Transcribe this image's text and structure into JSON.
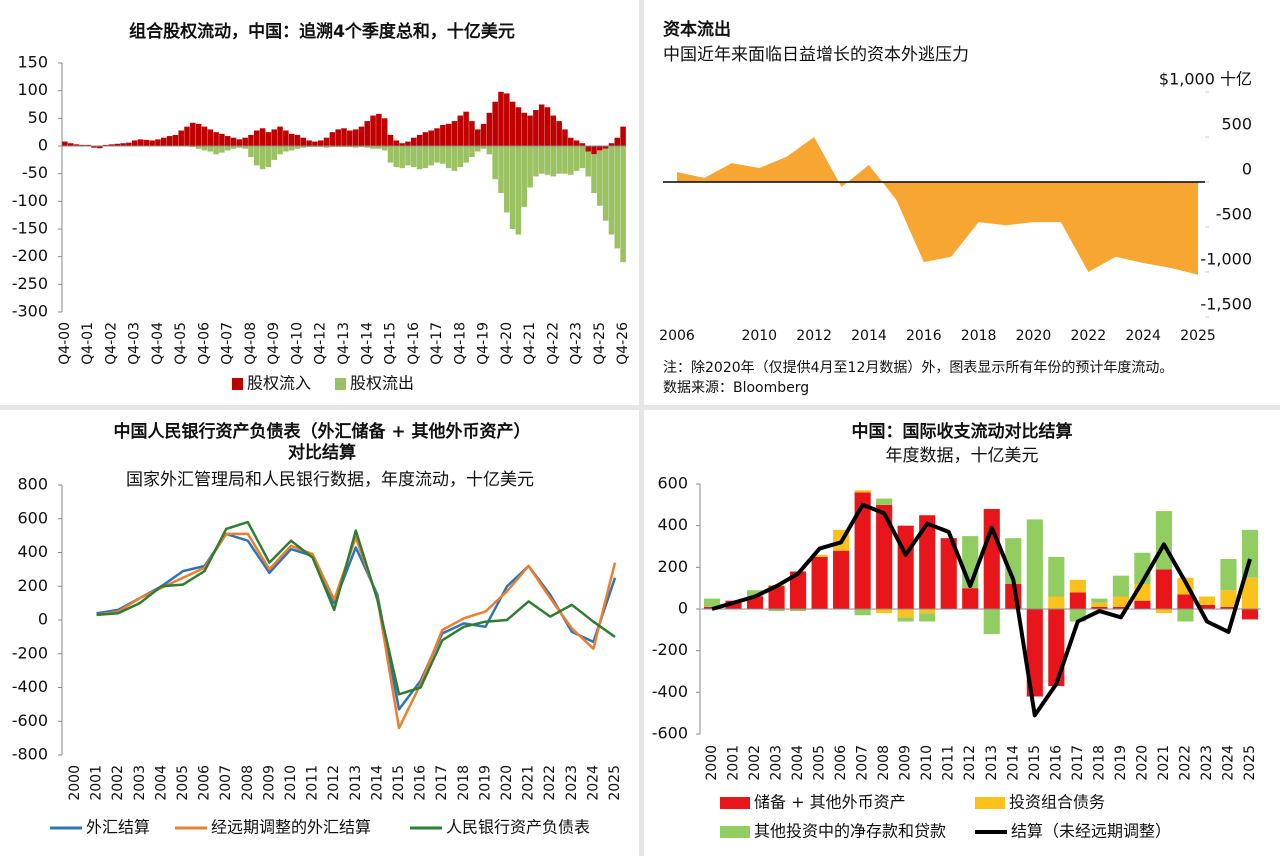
{
  "chart_data": [
    {
      "type": "bar",
      "title": "组合股权流动，中国：追溯4个季度总和，十亿美元",
      "categories": [
        "Q4-00",
        null,
        null,
        null,
        "Q4-01",
        null,
        null,
        null,
        "Q4-02",
        null,
        null,
        null,
        "Q4-03",
        null,
        null,
        null,
        "Q4-04",
        null,
        null,
        null,
        "Q4-05",
        null,
        null,
        null,
        "Q4-06",
        null,
        null,
        null,
        "Q4-07",
        null,
        null,
        null,
        "Q4-08",
        null,
        null,
        null,
        "Q4-09",
        null,
        null,
        null,
        "Q4-10",
        null,
        null,
        null,
        "Q4-12",
        null,
        null,
        null,
        "Q4-13",
        null,
        null,
        null,
        "Q4-14",
        null,
        null,
        null,
        "Q4-15",
        null,
        null,
        null,
        "Q4-16",
        null,
        null,
        null,
        "Q4-17",
        null,
        null,
        null,
        "Q4-18",
        null,
        null,
        null,
        "Q4-19",
        null,
        null,
        null,
        "Q4-20",
        null,
        null,
        null,
        "Q4-21",
        null,
        null,
        null,
        "Q4-22",
        null,
        null,
        null,
        "Q4-23",
        null,
        null,
        null,
        "Q4-25",
        null,
        null,
        null,
        "Q4-26"
      ],
      "series": [
        {
          "name": "股权流入",
          "color": "#c00000",
          "values": [
            8,
            5,
            3,
            2,
            2,
            -3,
            -4,
            2,
            3,
            4,
            5,
            6,
            10,
            12,
            11,
            10,
            12,
            15,
            18,
            20,
            28,
            35,
            42,
            40,
            35,
            30,
            25,
            22,
            18,
            15,
            12,
            15,
            20,
            28,
            32,
            25,
            30,
            35,
            28,
            22,
            20,
            15,
            10,
            8,
            10,
            15,
            25,
            30,
            32,
            28,
            30,
            35,
            45,
            55,
            58,
            50,
            20,
            10,
            5,
            8,
            15,
            20,
            25,
            28,
            32,
            38,
            40,
            45,
            55,
            62,
            45,
            30,
            40,
            60,
            80,
            98,
            95,
            80,
            70,
            60,
            55,
            65,
            75,
            70,
            55,
            45,
            30,
            15,
            10,
            5,
            -10,
            -15,
            -8,
            -5,
            5,
            15,
            35
          ]
        },
        {
          "name": "股权流出",
          "color": "#9bc262",
          "values": [
            0,
            0,
            0,
            0,
            0,
            0,
            0,
            0,
            0,
            0,
            0,
            0,
            0,
            0,
            0,
            0,
            0,
            0,
            0,
            0,
            0,
            0,
            -2,
            -5,
            -8,
            -10,
            -15,
            -12,
            -8,
            -5,
            -3,
            -5,
            -20,
            -35,
            -42,
            -38,
            -25,
            -15,
            -10,
            -8,
            -5,
            -3,
            -2,
            -2,
            -2,
            -3,
            -2,
            -2,
            -2,
            -2,
            -3,
            -2,
            -3,
            -5,
            -5,
            -8,
            -30,
            -38,
            -40,
            -35,
            -38,
            -42,
            -40,
            -35,
            -30,
            -32,
            -40,
            -45,
            -38,
            -30,
            -20,
            -10,
            -5,
            -15,
            -60,
            -85,
            -120,
            -150,
            -160,
            -110,
            -75,
            -55,
            -50,
            -52,
            -55,
            -50,
            -50,
            -52,
            -45,
            -40,
            -45,
            -70,
            -100,
            -130,
            -160,
            -185,
            -210
          ]
        }
      ],
      "ylim": [
        -300,
        150
      ],
      "yticks": [
        -300,
        -250,
        -200,
        -150,
        -100,
        -50,
        0,
        50,
        100,
        150
      ]
    },
    {
      "type": "area",
      "title": "资本流出",
      "subtitle": "中国近年来面临日益增长的资本外逃压力",
      "notes": [
        "注：除2020年（仅提供4月至12月数据）外，图表显示所有年份的预计年度流动。",
        "数据来源：Bloomberg"
      ],
      "categories": [
        "2006",
        null,
        null,
        "2010",
        null,
        "2012",
        null,
        "2014",
        null,
        "2016",
        null,
        "2018",
        null,
        "2020",
        null,
        "2022",
        null,
        "2024",
        null,
        "2025"
      ],
      "values": [
        110,
        45,
        210,
        155,
        280,
        500,
        -55,
        190,
        -200,
        -890,
        -830,
        -445,
        -480,
        -445,
        -445,
        -1000,
        -830,
        -900,
        -955,
        -1030
      ],
      "color": "#f8a632",
      "ylim": [
        -1500,
        1000
      ],
      "yticks": [
        {
          "value": -1500,
          "label": "-1,500"
        },
        {
          "value": -1000,
          "label": "-1,000"
        },
        -500,
        0,
        500,
        {
          "value": 1000,
          "label": "$1,000 十亿"
        }
      ]
    },
    {
      "type": "line",
      "title": [
        "中国人民银行资产负债表（外汇储备 + 其他外币资产）",
        "对比结算"
      ],
      "subtitle": "国家外汇管理局和人民银行数据，年度流动，十亿美元",
      "categories": [
        "2000",
        "2001",
        "2002",
        "2003",
        "2004",
        "2005",
        "2006",
        "2007",
        "2008",
        "2009",
        "2010",
        "2011",
        "2012",
        "2013",
        "2014",
        "2015",
        "2016",
        "2017",
        "2018",
        "2019",
        "2020",
        "2021",
        "2022",
        "2023",
        "2024",
        "2025"
      ],
      "series": [
        {
          "name": "外汇结算",
          "color": "#2e75b6",
          "values": [
            null,
            40,
            60,
            130,
            200,
            290,
            320,
            510,
            470,
            280,
            420,
            380,
            100,
            430,
            150,
            -530,
            -360,
            -80,
            -20,
            -40,
            200,
            320,
            150,
            -70,
            -130,
            250
          ]
        },
        {
          "name": "经远期调整的外汇结算",
          "color": "#ed7d31",
          "values": [
            null,
            30,
            50,
            130,
            190,
            250,
            310,
            510,
            510,
            300,
            440,
            390,
            120,
            490,
            130,
            -640,
            -380,
            -60,
            10,
            50,
            170,
            320,
            130,
            -50,
            -170,
            340
          ]
        },
        {
          "name": "人民银行资产负债表",
          "color": "#2e7d32",
          "values": [
            null,
            30,
            40,
            100,
            200,
            210,
            290,
            540,
            580,
            340,
            470,
            370,
            60,
            530,
            120,
            -440,
            -400,
            -120,
            -40,
            -10,
            0,
            110,
            20,
            90,
            -10,
            -100
          ]
        }
      ],
      "ylim": [
        -800,
        800
      ],
      "yticks": [
        -800,
        -600,
        -400,
        -200,
        0,
        200,
        400,
        600,
        800
      ]
    },
    {
      "type": "combo",
      "title": "中国：国际收支流动对比结算",
      "subtitle": "年度数据，十亿美元",
      "categories": [
        "2000",
        "2001",
        "2002",
        "2003",
        "2004",
        "2005",
        "2006",
        "2007",
        "2008",
        "2009",
        "2010",
        "2011",
        "2012",
        "2013",
        "2014",
        "2015",
        "2016",
        "2017",
        "2018",
        "2019",
        "2020",
        "2021",
        "2022",
        "2023",
        "2024",
        "2025"
      ],
      "series": [
        {
          "name": "储备 + 其他外币资产",
          "color": "#e8161b",
          "values": [
            10,
            40,
            60,
            110,
            180,
            250,
            280,
            560,
            500,
            400,
            450,
            340,
            100,
            480,
            120,
            -420,
            -370,
            80,
            10,
            10,
            40,
            190,
            70,
            20,
            10,
            -50
          ]
        },
        {
          "name": "投资组合债务",
          "color": "#fcc21b",
          "values": [
            0,
            0,
            0,
            5,
            0,
            10,
            100,
            10,
            -20,
            -40,
            -20,
            0,
            0,
            0,
            0,
            0,
            60,
            60,
            20,
            50,
            80,
            -20,
            80,
            40,
            80,
            150
          ]
        },
        {
          "name": "其他投资中的净存款和贷款",
          "color": "#92cd62",
          "values": [
            40,
            0,
            30,
            -10,
            -10,
            0,
            0,
            -30,
            30,
            -20,
            -40,
            0,
            250,
            -120,
            220,
            430,
            190,
            -60,
            20,
            100,
            150,
            280,
            -60,
            0,
            150,
            230
          ]
        },
        {
          "name": "结算（未经远期调整）",
          "color": "#000000",
          "type": "line",
          "values": [
            0,
            30,
            60,
            110,
            170,
            290,
            320,
            500,
            460,
            260,
            410,
            370,
            110,
            390,
            140,
            -510,
            -360,
            -60,
            -10,
            -40,
            130,
            310,
            130,
            -60,
            -110,
            240
          ]
        }
      ],
      "ylim": [
        -600,
        600
      ],
      "yticks": [
        -600,
        -400,
        -200,
        0,
        200,
        400,
        600
      ]
    }
  ]
}
